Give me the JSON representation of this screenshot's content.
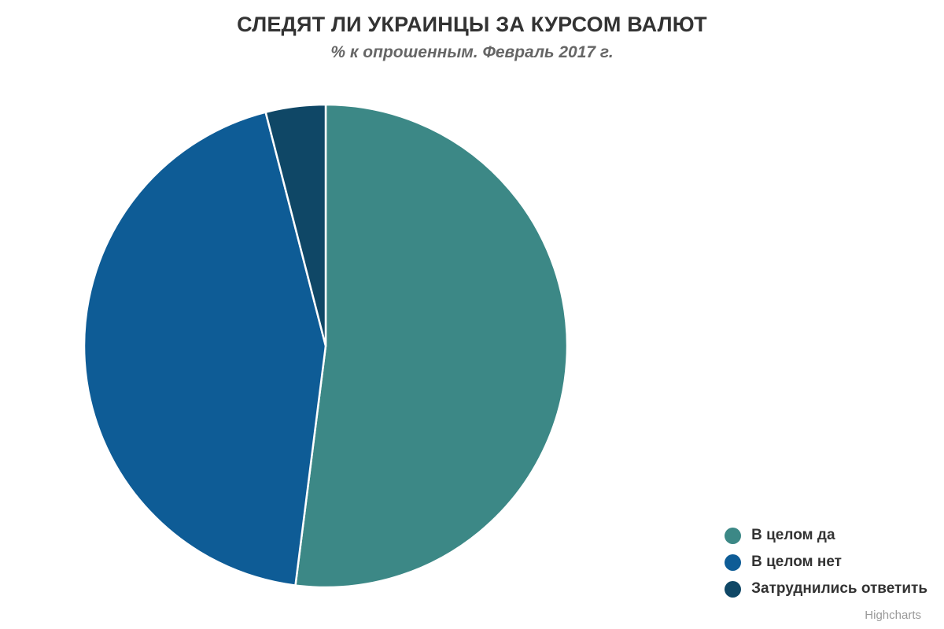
{
  "chart_data": {
    "type": "pie",
    "title": "СЛЕДЯТ ЛИ УКРАИНЦЫ ЗА КУРСОМ ВАЛЮТ",
    "subtitle": "% к опрошенным. Февраль 2017 г.",
    "start_angle_deg": 0,
    "direction": "clockwise",
    "legend_position": "bottom-right",
    "slice_border_color": "#FFFFFF",
    "slices": [
      {
        "label": "В целом да",
        "value": 52,
        "color": "#3C8886"
      },
      {
        "label": "В целом нет",
        "value": 44,
        "color": "#0E5C96"
      },
      {
        "label": "Затруднились ответить",
        "value": 4,
        "color": "#0F4766"
      }
    ]
  },
  "credits": {
    "label": "Highcharts"
  }
}
